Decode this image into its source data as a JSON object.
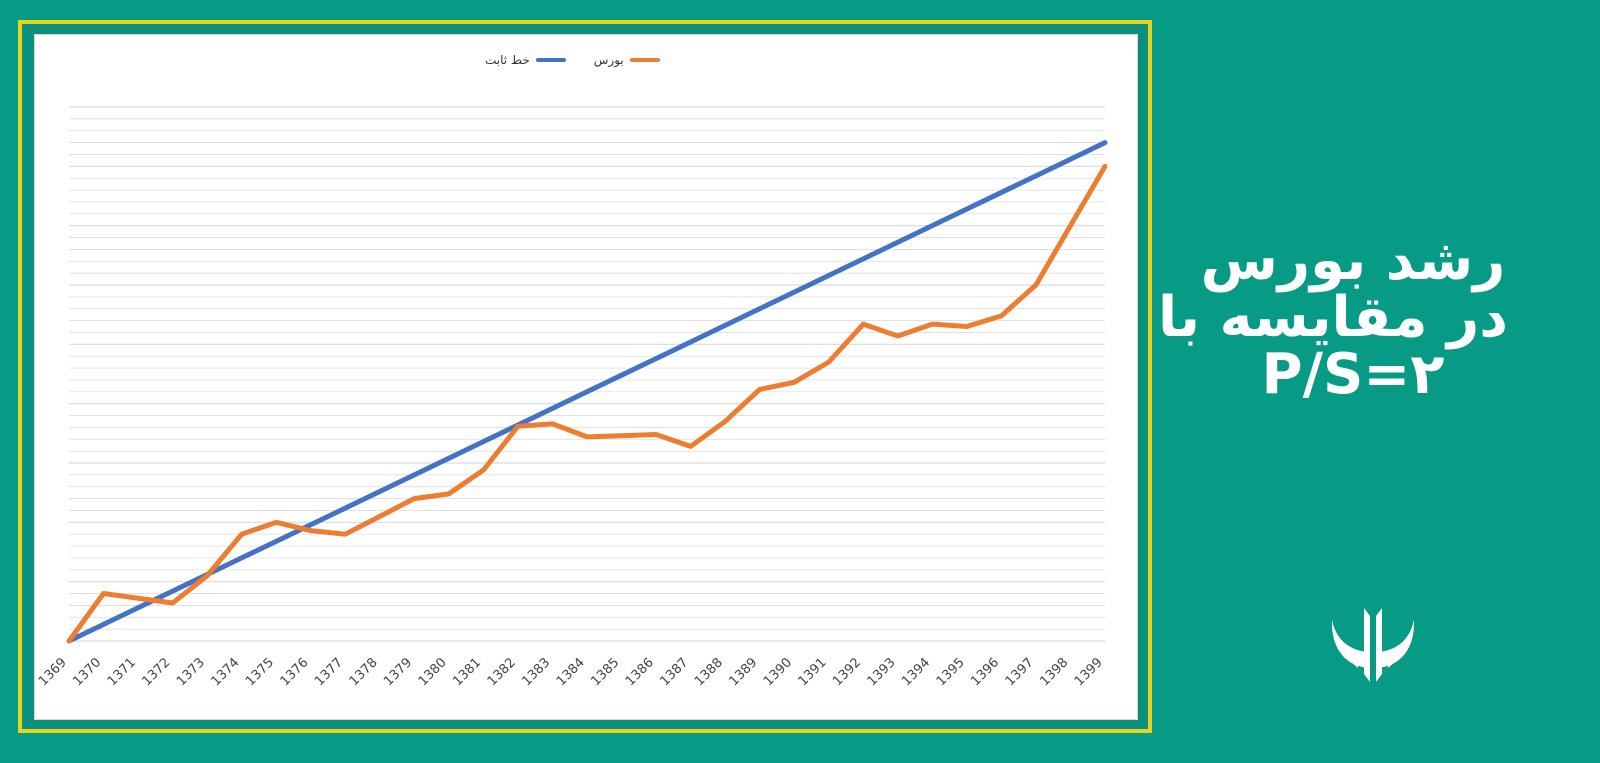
{
  "colors": {
    "background": "#079b86",
    "frame_border": "#e6d31d",
    "chart_background": "#ffffff",
    "gridline": "#d9d9d9",
    "fixed_line": "#4472c4",
    "stock_line": "#ed7d31",
    "title_text": "#ffffff"
  },
  "title": {
    "line1": "رشد بورس",
    "line2": "در مقایسه با",
    "line3": "P/S=۲"
  },
  "logo": {
    "icon": "bull-horns-icon"
  },
  "chart_data": {
    "type": "line",
    "title": "",
    "xlabel": "",
    "ylabel": "",
    "x": [
      "1369",
      "1370",
      "1371",
      "1372",
      "1373",
      "1374",
      "1375",
      "1376",
      "1377",
      "1378",
      "1379",
      "1380",
      "1381",
      "1382",
      "1383",
      "1384",
      "1385",
      "1386",
      "1387",
      "1388",
      "1389",
      "1390",
      "1391",
      "1392",
      "1393",
      "1394",
      "1395",
      "1396",
      "1397",
      "1398",
      "1399"
    ],
    "legend": [
      {
        "name": "بورس",
        "color": "#ed7d31"
      },
      {
        "name": "خط ثابت",
        "color": "#4472c4"
      }
    ],
    "series": [
      {
        "name": "خط ثابت",
        "color": "#4472c4",
        "values": [
          0,
          1.4,
          2.8,
          4.2,
          5.6,
          7,
          8.4,
          9.8,
          11.2,
          12.6,
          14,
          15.4,
          16.8,
          18.2,
          19.6,
          21,
          22.4,
          23.8,
          25.2,
          26.6,
          28,
          29.4,
          30.8,
          32.2,
          33.6,
          35,
          36.4,
          37.8,
          39.2,
          40.6,
          42
        ]
      },
      {
        "name": "بورس",
        "color": "#ed7d31",
        "values": [
          0,
          4,
          3.6,
          3.2,
          5.5,
          9,
          10,
          9.3,
          9,
          10.5,
          12,
          12.4,
          14.4,
          18.1,
          18.3,
          17.2,
          17.3,
          17.4,
          16.4,
          18.5,
          21.2,
          21.8,
          23.5,
          26.7,
          25.7,
          26.7,
          26.5,
          27.4,
          30,
          35,
          40
        ]
      }
    ],
    "ylim": [
      0,
      45
    ],
    "grid": true,
    "legend_position": "top-center"
  }
}
